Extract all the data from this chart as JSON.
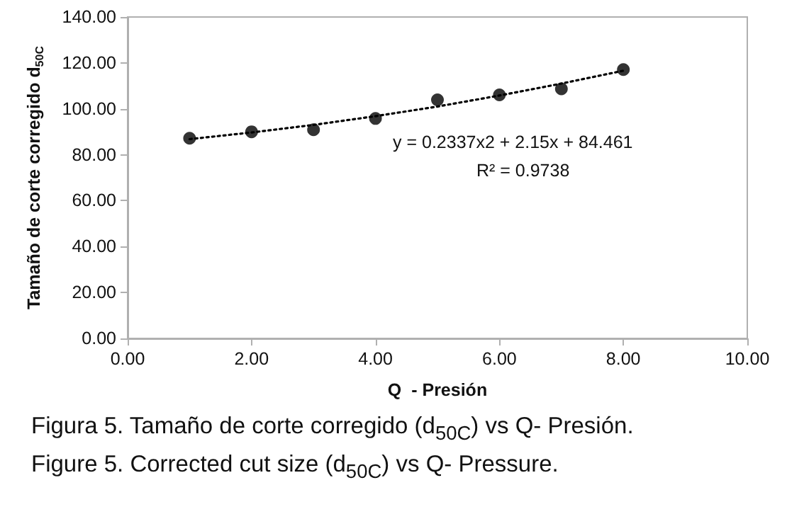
{
  "chart_data": {
    "type": "scatter",
    "title": "Figura 5. Tamaño de corte corregido (d$_{50C}$) vs Q- Presión.",
    "subtitle": "Figure 5. Corrected cut size (d$_{50C}$) vs Q- Pressure.",
    "xlabel": "Q  - Presión",
    "ylabel": "Tamaño de corte corregido d$_{50C}$",
    "annotations": [
      "y = 0.2337x2 + 2.15x + 84.461",
      "R² = 0.9738"
    ],
    "series": [
      {
        "color": "#000000",
        "marker": "circle",
        "x": [
          1,
          2,
          3,
          4,
          5,
          6,
          7,
          8
        ],
        "values": [
          87.2,
          90.0,
          90.9,
          95.8,
          103.9,
          106.1,
          108.7,
          117.1
        ]
      },
      {
        "type": "line",
        "color": "#000000",
        "marker": "none",
        "line_style": "dotted",
        "x": [
          1,
          2,
          3,
          4,
          5,
          6,
          7,
          8
        ],
        "values": [
          86.8,
          89.7,
          93.0,
          96.8,
          101.0,
          105.8,
          111.0,
          116.6
        ]
      }
    ],
    "xlim": [
      0,
      10
    ],
    "xticks": [
      {
        "value": 0,
        "label": "0.00"
      },
      {
        "value": 2,
        "label": "2.00"
      },
      {
        "value": 4,
        "label": "4.00"
      },
      {
        "value": 6,
        "label": "6.00"
      },
      {
        "value": 8,
        "label": "8.00"
      },
      {
        "value": 10,
        "label": "10.00"
      }
    ],
    "ylim": [
      0,
      140
    ],
    "yticks": [
      {
        "value": 0,
        "label": "0.00"
      },
      {
        "value": 20,
        "label": "20.00"
      },
      {
        "value": 40,
        "label": "40.00"
      },
      {
        "value": 60,
        "label": "60.00"
      },
      {
        "value": 80,
        "label": "80.00"
      },
      {
        "value": 100,
        "label": "100.00"
      },
      {
        "value": 120,
        "label": "120.00"
      },
      {
        "value": 140,
        "label": "140.00"
      }
    ],
    "grid": false
  }
}
